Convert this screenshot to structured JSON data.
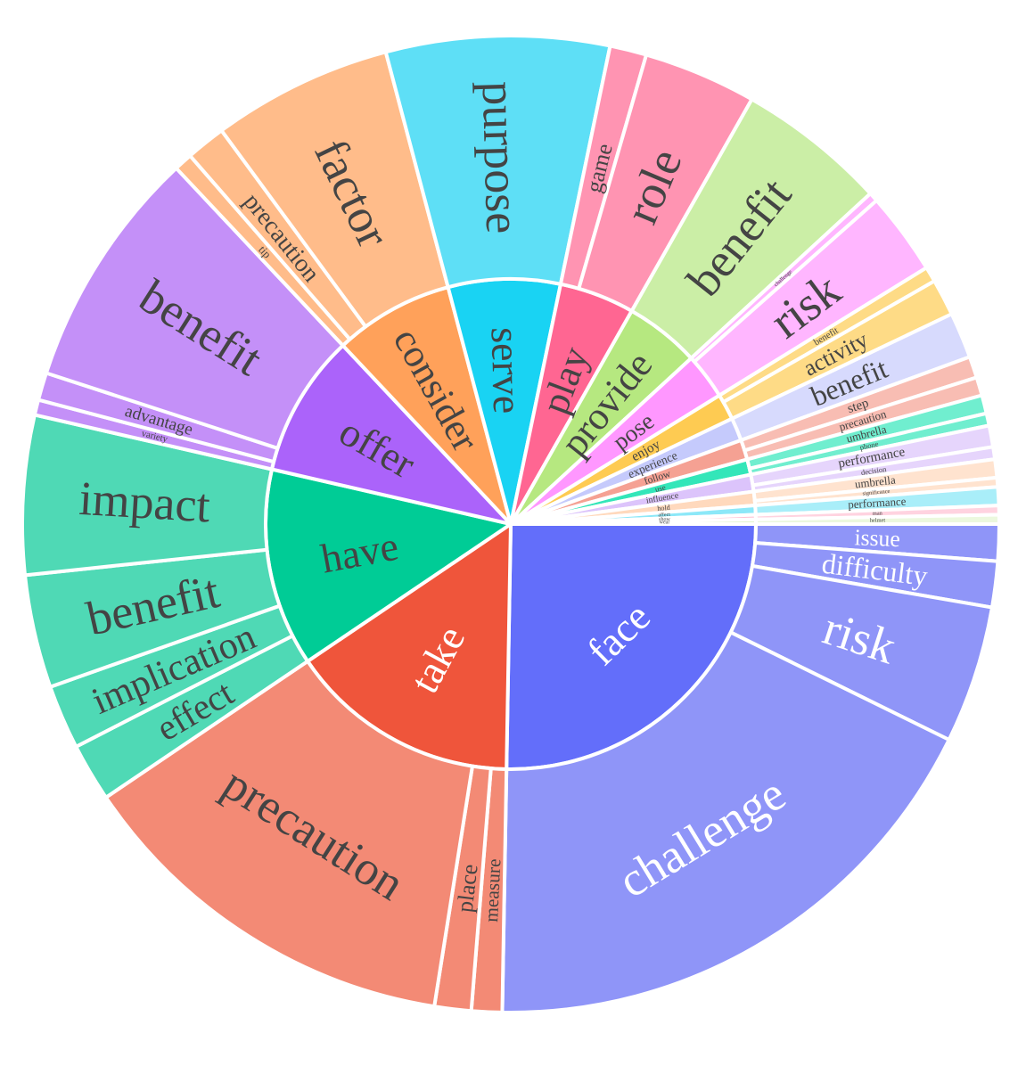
{
  "chart_data": {
    "type": "sunburst",
    "title": "",
    "colors": {
      "label_dark": "#444444",
      "label_light": "#ffffff",
      "stroke": "#ffffff"
    },
    "series": [
      {
        "name": "face",
        "value": 25,
        "color": "#636efa",
        "children_color": "#8f95f8",
        "children": [
          {
            "name": "issue",
            "value": 1.2
          },
          {
            "name": "difficulty",
            "value": 1.5
          },
          {
            "name": "risk",
            "value": 4.5
          },
          {
            "name": "challenge",
            "value": 17.8
          }
        ]
      },
      {
        "name": "take",
        "value": 15.1,
        "color": "#ef553b",
        "children_color": "#f38a75",
        "children": [
          {
            "name": "measure",
            "value": 1.0
          },
          {
            "name": "place",
            "value": 1.2
          },
          {
            "name": "precaution",
            "value": 12.9
          }
        ]
      },
      {
        "name": "have",
        "value": 12.9,
        "color": "#00cc96",
        "children_color": "#4fd9b5",
        "children": [
          {
            "name": "effect",
            "value": 1.9
          },
          {
            "name": "implication",
            "value": 2.1
          },
          {
            "name": "benefit",
            "value": 3.7
          },
          {
            "name": "impact",
            "value": 5.2
          }
        ]
      },
      {
        "name": "offer",
        "value": 9.3,
        "color": "#ab63fa",
        "children_color": "#c490f8",
        "children": [
          {
            "name": "variety",
            "value": 0.5
          },
          {
            "name": "advantage",
            "value": 0.9
          },
          {
            "name": "benefit",
            "value": 7.9
          }
        ]
      },
      {
        "name": "consider",
        "value": 7.8,
        "color": "#ffa15a",
        "children_color": "#ffbc8a",
        "children": [
          {
            "name": "tip",
            "value": 0.6
          },
          {
            "name": "precaution",
            "value": 1.3
          },
          {
            "name": "factor",
            "value": 5.9
          }
        ]
      },
      {
        "name": "serve",
        "value": 7.3,
        "color": "#19d3f3",
        "children_color": "#5edff6",
        "children": [
          {
            "name": "purpose",
            "value": 7.3
          }
        ]
      },
      {
        "name": "play",
        "value": 4.9,
        "color": "#ff6692",
        "children_color": "#ff94b2",
        "children": [
          {
            "name": "game",
            "value": 1.2
          },
          {
            "name": "role",
            "value": 3.7
          }
        ]
      },
      {
        "name": "provide",
        "value": 4.9,
        "color": "#b6e880",
        "children_color": "#cbeea6",
        "children": [
          {
            "name": "benefit",
            "value": 4.9
          }
        ]
      },
      {
        "name": "pose",
        "value": 3.0,
        "color": "#ff97ff",
        "children_color": "#ffb6ff",
        "children": [
          {
            "name": "challenge",
            "value": 0.3
          },
          {
            "name": "risk",
            "value": 2.7
          }
        ]
      },
      {
        "name": "enjoy",
        "value": 1.7,
        "color": "#fecb52",
        "children_color": "#fedb86",
        "children": [
          {
            "name": "benefit",
            "value": 0.5
          },
          {
            "name": "activity",
            "value": 1.2
          }
        ]
      },
      {
        "name": "experience",
        "value": 1.5,
        "color": "#c5cafc",
        "children_color": "#d7dafd",
        "children": [
          {
            "name": "benefit",
            "value": 1.5
          }
        ]
      },
      {
        "name": "follow",
        "value": 1.3,
        "color": "#f5a193",
        "children_color": "#f8bdb3",
        "children": [
          {
            "name": "step",
            "value": 0.7
          },
          {
            "name": "precaution",
            "value": 0.6
          }
        ]
      },
      {
        "name": "use",
        "value": 1.0,
        "color": "#33e6b9",
        "children_color": "#70eecf",
        "children": [
          {
            "name": "umbrella",
            "value": 0.6
          },
          {
            "name": "phone",
            "value": 0.4
          }
        ]
      },
      {
        "name": "influence",
        "value": 1.1,
        "color": "#dcc4fb",
        "children_color": "#e6d5fc",
        "children": [
          {
            "name": "performance",
            "value": 0.7
          },
          {
            "name": "decision",
            "value": 0.4
          }
        ]
      },
      {
        "name": "hold",
        "value": 0.9,
        "color": "#ffd9bd",
        "children_color": "#ffe3cf",
        "children": [
          {
            "name": "umbrella",
            "value": 0.6
          },
          {
            "name": "significance",
            "value": 0.3
          }
        ]
      },
      {
        "name": "affect",
        "value": 0.6,
        "color": "#8ce8f8",
        "children_color": "#a9eef9",
        "children": [
          {
            "name": "performance",
            "value": 0.6
          }
        ]
      },
      {
        "name": "show",
        "value": 0.3,
        "color": "#ffc2d4",
        "children_color": "#ffd3e0",
        "children": [
          {
            "name": "man",
            "value": 0.3
          }
        ]
      },
      {
        "name": "wear",
        "value": 0.3,
        "color": "#e3f5cf",
        "children_color": "#ecf8de",
        "children": [
          {
            "name": "helmet",
            "value": 0.3
          }
        ]
      }
    ]
  }
}
